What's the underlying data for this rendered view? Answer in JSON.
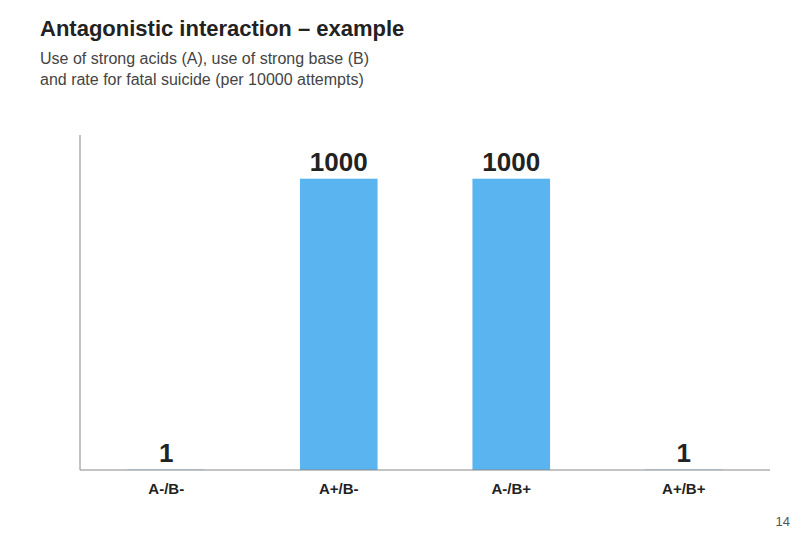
{
  "chart_data": {
    "type": "bar",
    "title": "Antagonistic interaction – example",
    "subtitle": "Use of strong acids (A), use of strong base (B)\nand rate for fatal suicide (per 10000 attempts)",
    "annotations": [
      "14"
    ],
    "categories": [
      "A-/B-",
      "A+/B-",
      "A-/B+",
      "A+/B+"
    ],
    "values": [
      1,
      1000,
      1000,
      1
    ],
    "color": "#5ab4f0",
    "ylim": [
      0,
      1150
    ],
    "grid": false,
    "data_labels": true,
    "tick_labels": "x"
  }
}
